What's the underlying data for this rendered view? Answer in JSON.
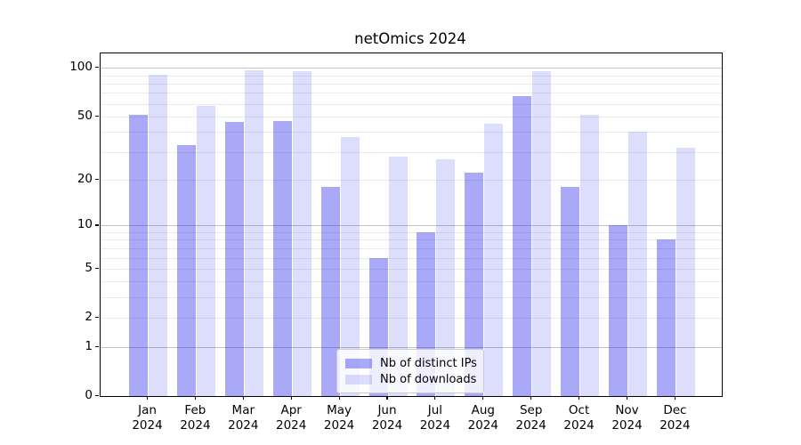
{
  "title": "netOmics 2024",
  "legend": {
    "items": [
      {
        "label": "Nb of distinct IPs",
        "series": "ips"
      },
      {
        "label": "Nb of downloads",
        "series": "downloads"
      }
    ]
  },
  "colors": {
    "ips": "rgba(28,28,235,0.38)",
    "downloads": "rgba(28,28,235,0.15)",
    "major_grid": "#c3c3c3",
    "minor_grid": "#eaeaea",
    "axis": "#000000"
  },
  "y_axis": {
    "tick_values": [
      0,
      1,
      2,
      5,
      10,
      20,
      50,
      100
    ],
    "tick_labels": [
      "0",
      "1",
      "2",
      "5",
      "10",
      "20",
      "50",
      "100"
    ],
    "major_gridline_values": [
      1,
      10,
      100
    ],
    "minor_gridline_values": [
      2,
      3,
      4,
      5,
      6,
      7,
      8,
      9,
      20,
      30,
      40,
      50,
      60,
      70,
      80,
      90
    ]
  },
  "chart_data": {
    "type": "bar",
    "title": "netOmics 2024",
    "categories": [
      "Jan 2024",
      "Feb 2024",
      "Mar 2024",
      "Apr 2024",
      "May 2024",
      "Jun 2024",
      "Jul 2024",
      "Aug 2024",
      "Sep 2024",
      "Oct 2024",
      "Nov 2024",
      "Dec 2024"
    ],
    "series": [
      {
        "name": "Nb of distinct IPs",
        "values": [
          51,
          33,
          46,
          47,
          18,
          6,
          9,
          22,
          67,
          18,
          10,
          8
        ]
      },
      {
        "name": "Nb of downloads",
        "values": [
          91,
          58,
          97,
          95,
          37,
          28,
          27,
          45,
          95,
          51,
          40,
          32
        ]
      }
    ],
    "xlabel": "",
    "ylabel": "",
    "y_scale": "log1p",
    "y_ticks": [
      0,
      1,
      2,
      5,
      10,
      20,
      50,
      100
    ],
    "ylim": [
      0,
      123
    ],
    "grid": "on",
    "legend_position": "lower center"
  }
}
